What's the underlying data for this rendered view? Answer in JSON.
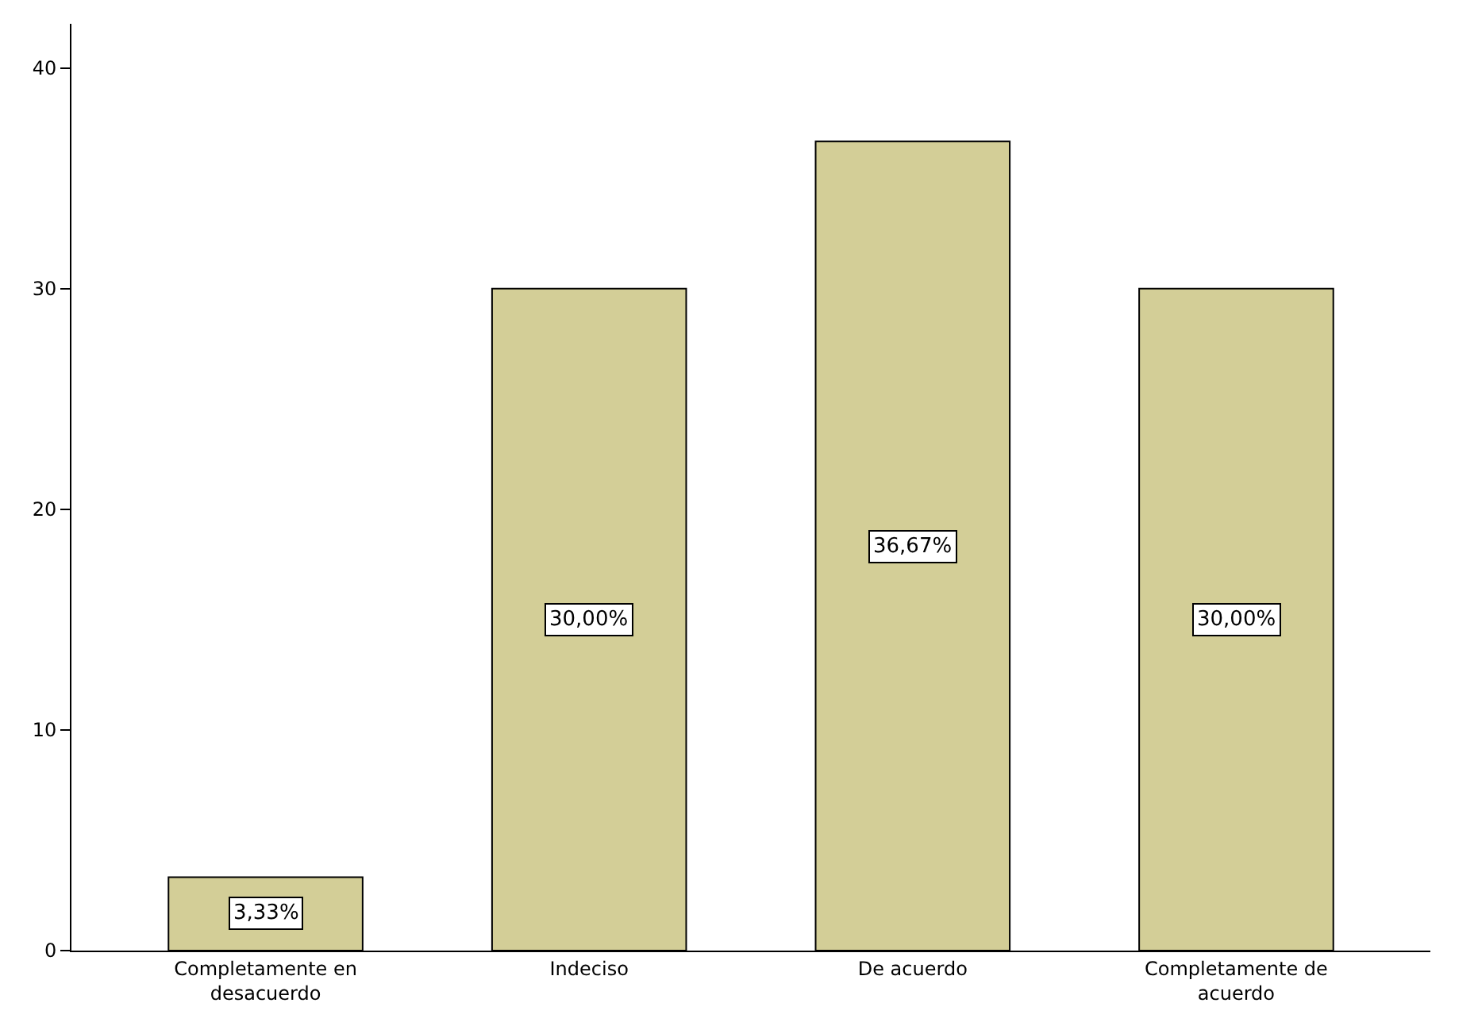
{
  "chart_data": {
    "type": "bar",
    "categories": [
      "Completamente en\ndesacuerdo",
      "Indeciso",
      "De acuerdo",
      "Completamente de\nacuerdo"
    ],
    "values": [
      3.33,
      30.0,
      36.67,
      30.0
    ],
    "value_labels": [
      "3,33%",
      "30,00%",
      "36,67%",
      "30,00%"
    ],
    "color": "#d3ce97",
    "ylim": [
      0,
      42
    ],
    "yticks": [
      0,
      10,
      20,
      30,
      40
    ],
    "legend": false
  }
}
